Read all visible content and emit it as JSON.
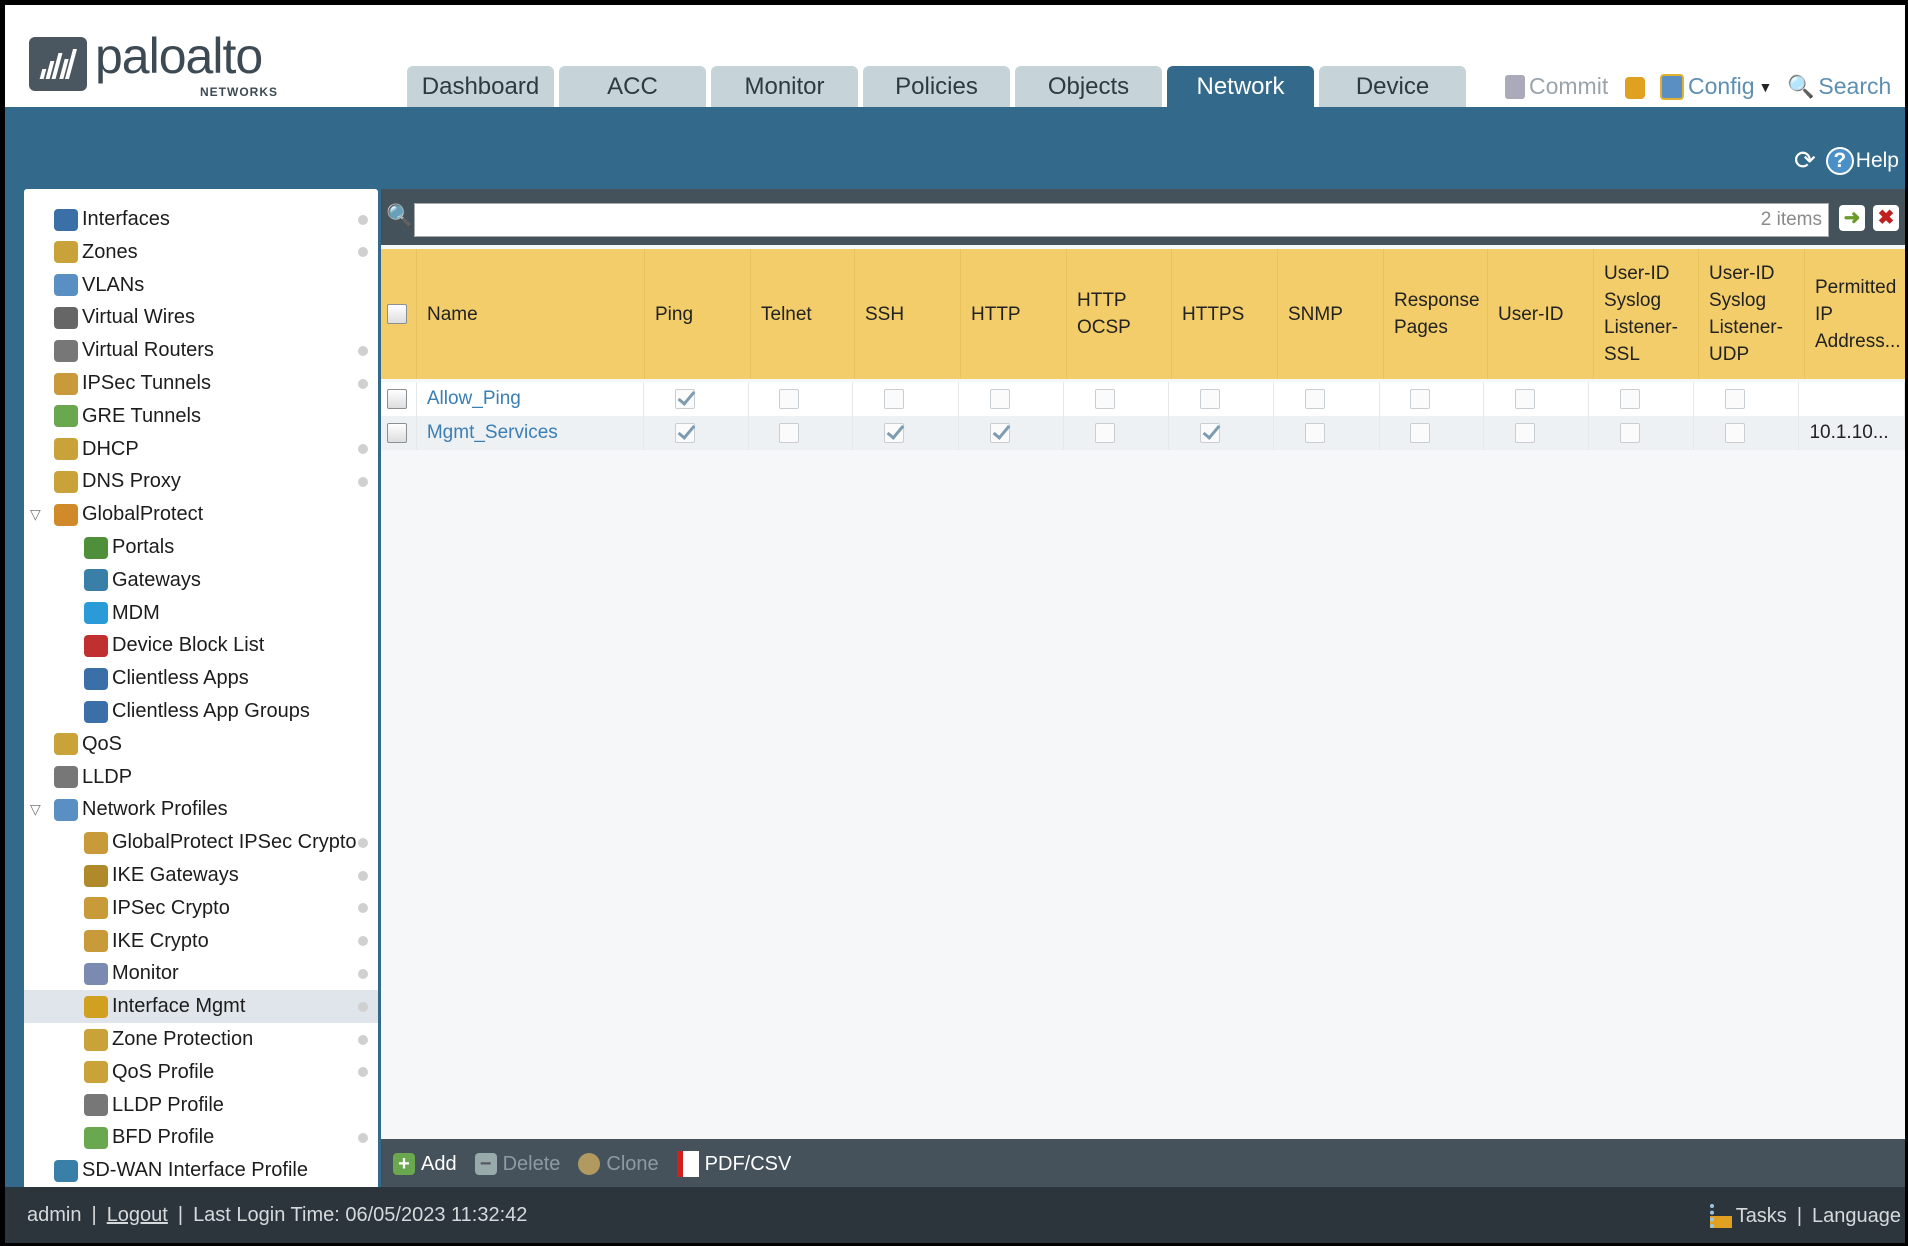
{
  "brand": {
    "name": "paloalto",
    "sub": "NETWORKS"
  },
  "tabs": [
    "Dashboard",
    "ACC",
    "Monitor",
    "Policies",
    "Objects",
    "Network",
    "Device"
  ],
  "active_tab": "Network",
  "header_actions": {
    "commit": "Commit",
    "config": "Config",
    "search": "Search"
  },
  "helpbar": {
    "help": "Help"
  },
  "sidebar": {
    "items": [
      {
        "label": "Interfaces",
        "level": 0,
        "dot": true,
        "color": "#3a6fa8"
      },
      {
        "label": "Zones",
        "level": 0,
        "dot": true,
        "color": "#c9a23a"
      },
      {
        "label": "VLANs",
        "level": 0,
        "dot": false,
        "color": "#5a8fc4"
      },
      {
        "label": "Virtual Wires",
        "level": 0,
        "dot": false,
        "color": "#666"
      },
      {
        "label": "Virtual Routers",
        "level": 0,
        "dot": true,
        "color": "#777"
      },
      {
        "label": "IPSec Tunnels",
        "level": 0,
        "dot": true,
        "color": "#c99a3a"
      },
      {
        "label": "GRE Tunnels",
        "level": 0,
        "dot": false,
        "color": "#6aa84f"
      },
      {
        "label": "DHCP",
        "level": 0,
        "dot": true,
        "color": "#c9a23a"
      },
      {
        "label": "DNS Proxy",
        "level": 0,
        "dot": true,
        "color": "#c9a23a"
      },
      {
        "label": "GlobalProtect",
        "level": 0,
        "dot": false,
        "color": "#d08a2a",
        "expanded": true
      },
      {
        "label": "Portals",
        "level": 1,
        "dot": false,
        "color": "#4f8f3a"
      },
      {
        "label": "Gateways",
        "level": 1,
        "dot": false,
        "color": "#3a7fa8"
      },
      {
        "label": "MDM",
        "level": 1,
        "dot": false,
        "color": "#2a9ad8"
      },
      {
        "label": "Device Block List",
        "level": 1,
        "dot": false,
        "color": "#c03030"
      },
      {
        "label": "Clientless Apps",
        "level": 1,
        "dot": false,
        "color": "#3a6fa8"
      },
      {
        "label": "Clientless App Groups",
        "level": 1,
        "dot": false,
        "color": "#3a6fa8"
      },
      {
        "label": "QoS",
        "level": 0,
        "dot": false,
        "color": "#c9a23a"
      },
      {
        "label": "LLDP",
        "level": 0,
        "dot": false,
        "color": "#777"
      },
      {
        "label": "Network Profiles",
        "level": 0,
        "dot": false,
        "color": "#5a8fc4",
        "expanded": true
      },
      {
        "label": "GlobalProtect IPSec Crypto",
        "level": 1,
        "dot": true,
        "color": "#c99a3a"
      },
      {
        "label": "IKE Gateways",
        "level": 1,
        "dot": true,
        "color": "#b08a2a"
      },
      {
        "label": "IPSec Crypto",
        "level": 1,
        "dot": true,
        "color": "#c99a3a"
      },
      {
        "label": "IKE Crypto",
        "level": 1,
        "dot": true,
        "color": "#c99a3a"
      },
      {
        "label": "Monitor",
        "level": 1,
        "dot": true,
        "color": "#7a8ab0"
      },
      {
        "label": "Interface Mgmt",
        "level": 1,
        "dot": true,
        "color": "#d0a020",
        "selected": true
      },
      {
        "label": "Zone Protection",
        "level": 1,
        "dot": true,
        "color": "#c9a23a"
      },
      {
        "label": "QoS Profile",
        "level": 1,
        "dot": true,
        "color": "#c9a23a"
      },
      {
        "label": "LLDP Profile",
        "level": 1,
        "dot": false,
        "color": "#777"
      },
      {
        "label": "BFD Profile",
        "level": 1,
        "dot": true,
        "color": "#6aa84f"
      },
      {
        "label": "SD-WAN Interface Profile",
        "level": 0,
        "dot": false,
        "color": "#3a7fa8"
      }
    ]
  },
  "filter": {
    "value": "",
    "count": "2 items"
  },
  "table": {
    "columns": [
      "Name",
      "Ping",
      "Telnet",
      "SSH",
      "HTTP",
      "HTTP OCSP",
      "HTTPS",
      "SNMP",
      "Response Pages",
      "User-ID",
      "User-ID Syslog Listener-SSL",
      "User-ID Syslog Listener-UDP",
      "Permitted IP Address..."
    ],
    "rows": [
      {
        "name": "Allow_Ping",
        "checks": [
          true,
          false,
          false,
          false,
          false,
          false,
          false,
          false,
          false,
          false,
          false
        ],
        "permitted": ""
      },
      {
        "name": "Mgmt_Services",
        "checks": [
          true,
          false,
          true,
          true,
          false,
          true,
          false,
          false,
          false,
          false,
          false
        ],
        "permitted": "10.1.10..."
      }
    ]
  },
  "toolbar": {
    "add": "Add",
    "delete": "Delete",
    "clone": "Clone",
    "pdf": "PDF/CSV"
  },
  "footer": {
    "user": "admin",
    "logout": "Logout",
    "last_login": "Last Login Time: 06/05/2023 11:32:42",
    "tasks": "Tasks",
    "language": "Language"
  }
}
